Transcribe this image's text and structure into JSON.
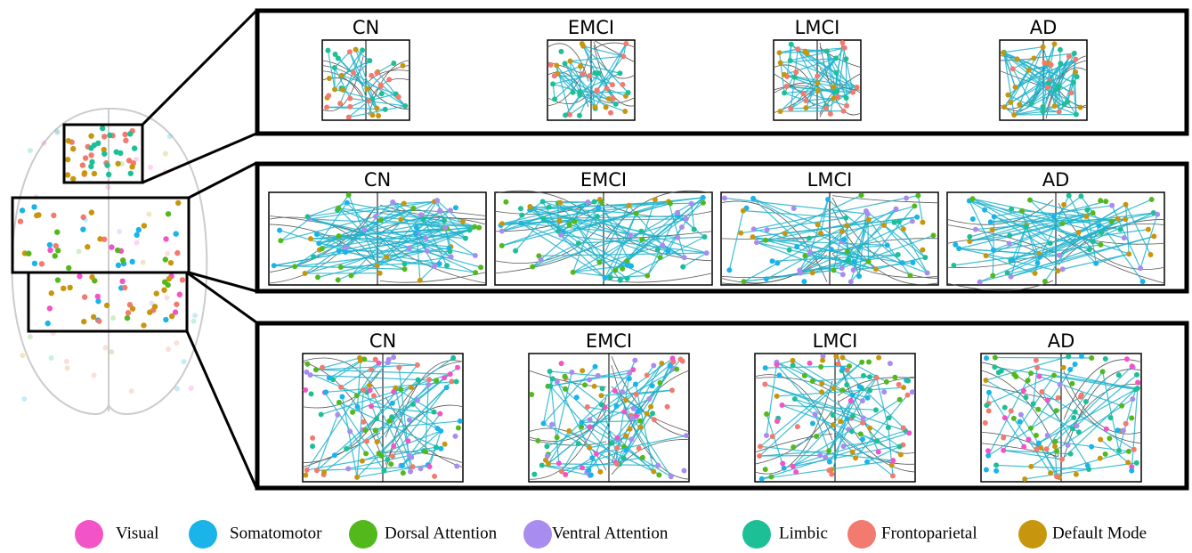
{
  "rows": [
    {
      "panels": [
        "CN",
        "EMCI",
        "LMCI",
        "AD"
      ]
    },
    {
      "panels": [
        "CN",
        "EMCI",
        "LMCI",
        "AD"
      ]
    },
    {
      "panels": [
        "CN",
        "EMCI",
        "LMCI",
        "AD"
      ]
    }
  ],
  "legend": [
    {
      "label": "Visual",
      "color": "#f254c8"
    },
    {
      "label": "Somatomotor",
      "color": "#1ab4e8"
    },
    {
      "label": "Dorsal Attention",
      "color": "#52b81c"
    },
    {
      "label": "Ventral Attention",
      "color": "#a98cf0"
    },
    {
      "label": "Limbic",
      "color": "#1dbf96"
    },
    {
      "label": "Frontoparietal",
      "color": "#f27a6f"
    },
    {
      "label": "Default Mode",
      "color": "#c8960e"
    }
  ]
}
